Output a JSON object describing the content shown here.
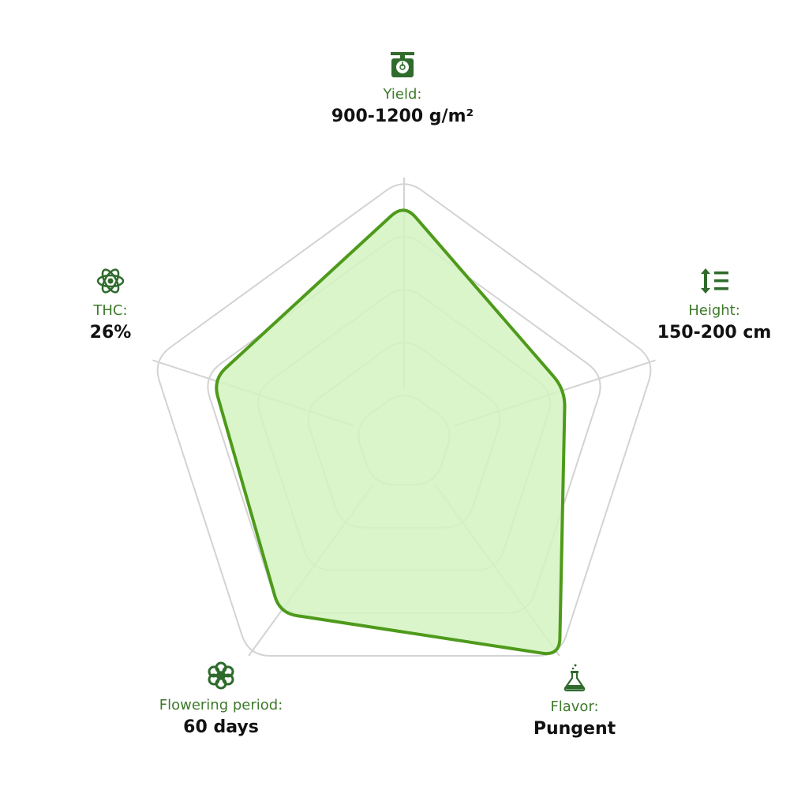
{
  "colors": {
    "grid": "#d3d3d3",
    "fill": "#d3f3c0",
    "stroke": "#4e9a1b",
    "icon": "#2f6b2c",
    "label": "#3d7a2a"
  },
  "axes": [
    {
      "label": "Yield:",
      "value": "900-1200 g/m²",
      "icon": "scale-icon"
    },
    {
      "label": "Height:",
      "value": "150-200 cm",
      "icon": "height-icon"
    },
    {
      "label": "Flavor:",
      "value": "Pungent",
      "icon": "flask-icon"
    },
    {
      "label": "Flowering period:",
      "value": "60 days",
      "icon": "flower-icon"
    },
    {
      "label": "THC:",
      "value": "26%",
      "icon": "atom-icon"
    }
  ],
  "chart_data": {
    "type": "radar",
    "categories": [
      "Yield",
      "Height",
      "Flavor",
      "Flowering period",
      "THC"
    ],
    "levels": 5,
    "range": [
      0,
      5
    ],
    "series": [
      {
        "values": [
          4.5,
          3.2,
          5.0,
          4.0,
          3.8
        ]
      }
    ],
    "grid": true
  }
}
